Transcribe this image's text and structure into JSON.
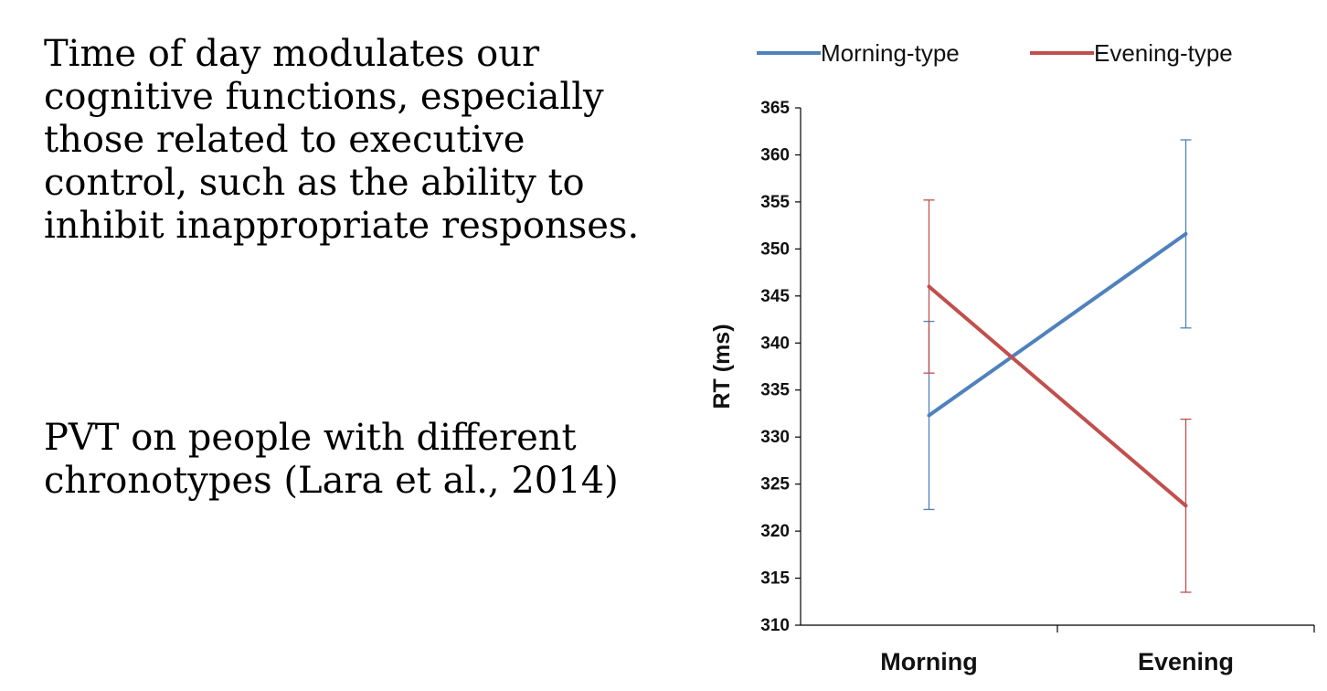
{
  "text": {
    "paragraph1": [
      "Time of day modulates our",
      "cognitive functions, especially",
      "those related to executive",
      "control, such as the ability to",
      "inhibit inappropriate responses."
    ],
    "paragraph2": [
      "PVT on people with different",
      "chronotypes (Lara et al., 2014)"
    ]
  },
  "chart_data": {
    "type": "line",
    "title": "",
    "xlabel": "",
    "ylabel": "RT (ms)",
    "categories": [
      "Morning",
      "Evening"
    ],
    "ylim": [
      310,
      365
    ],
    "yticks": [
      310,
      315,
      320,
      325,
      330,
      335,
      340,
      345,
      350,
      355,
      360,
      365
    ],
    "legend_position": "top",
    "grid": false,
    "series": [
      {
        "name": "Morning-type",
        "color": "#4f81bd",
        "values": [
          332.3,
          351.6
        ],
        "error": [
          10.0,
          10.0
        ]
      },
      {
        "name": "Evening-type",
        "color": "#c0504d",
        "values": [
          346.0,
          322.7
        ],
        "error": [
          9.2,
          9.2
        ]
      }
    ]
  }
}
